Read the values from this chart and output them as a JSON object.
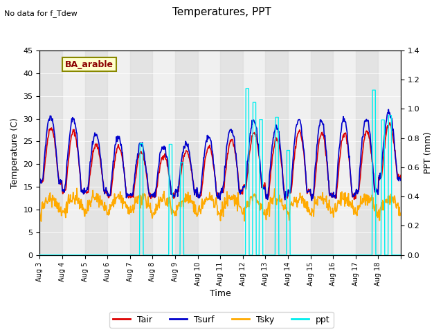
{
  "title": "Temperatures, PPT",
  "subtitle": "No data for f_Tdew",
  "annotation": "BA_arable",
  "xlabel": "Time",
  "ylabel_left": "Temperature (C)",
  "ylabel_right": "PPT (mm)",
  "ylim_left": [
    0,
    45
  ],
  "ylim_right": [
    0.0,
    1.4
  ],
  "yticks_left": [
    0,
    5,
    10,
    15,
    20,
    25,
    30,
    35,
    40,
    45
  ],
  "yticks_right": [
    0.0,
    0.2,
    0.4,
    0.6,
    0.8,
    1.0,
    1.2,
    1.4
  ],
  "xtick_labels": [
    "Aug 3",
    "Aug 4",
    "Aug 5",
    "Aug 6",
    "Aug 7",
    "Aug 8",
    "Aug 9",
    "Aug 10",
    "Aug 11",
    "Aug 12",
    "Aug 13",
    "Aug 14",
    "Aug 15",
    "Aug 16",
    "Aug 17",
    "Aug 18"
  ],
  "colors": {
    "Tair": "#dd0000",
    "Tsurf": "#0000cc",
    "Tsky": "#ffaa00",
    "ppt": "#00eeee",
    "background": "#e8e8e8",
    "plot_bg": "#f0f0f0",
    "annotation_bg": "#ffffcc",
    "annotation_border": "#888800"
  },
  "legend_labels": [
    "Tair",
    "Tsurf",
    "Tsky",
    "ppt"
  ],
  "n_days": 16,
  "n_points_per_day": 48
}
